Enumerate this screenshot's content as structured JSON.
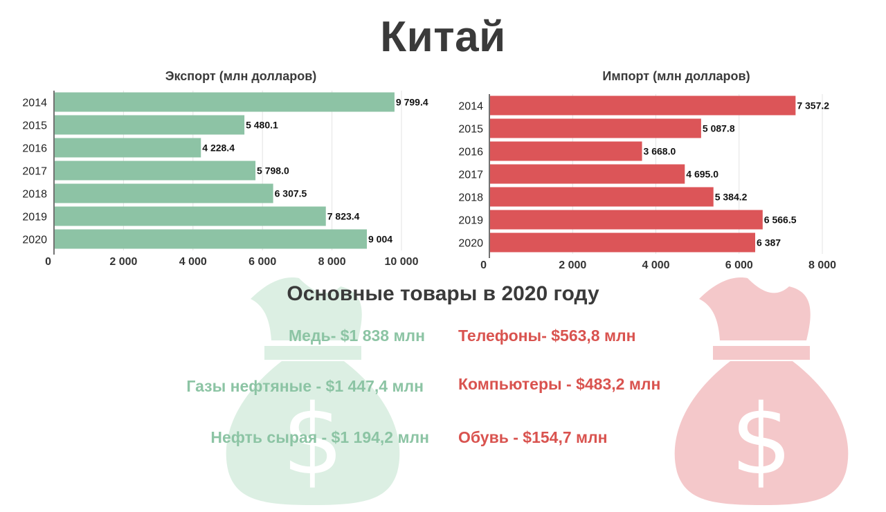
{
  "title": "Китай",
  "colors": {
    "export": "#8dc3a5",
    "import": "#dc5558",
    "bag_export": "#dcefe3",
    "bag_import": "#f4c8ca"
  },
  "icons": [
    "money-bag-icon",
    "money-bag-icon"
  ],
  "chart_data": [
    {
      "type": "bar",
      "orientation": "horizontal",
      "title": "Экспорт (млн долларов)",
      "categories": [
        "2014",
        "2015",
        "2016",
        "2017",
        "2018",
        "2019",
        "2020"
      ],
      "values": [
        9799.4,
        5480.1,
        4228.4,
        5798.0,
        6307.5,
        7823.4,
        9004
      ],
      "value_labels": [
        "9 799.4",
        "5 480.1",
        "4 228.4",
        "5 798.0",
        "6 307.5",
        "7 823.4",
        "9 004"
      ],
      "xlim": [
        0,
        10000
      ],
      "ticks": [
        0,
        2000,
        4000,
        6000,
        8000,
        10000
      ],
      "tick_labels": [
        "0",
        "2 000",
        "4 000",
        "6 000",
        "8 000",
        "10 000"
      ],
      "grid": true
    },
    {
      "type": "bar",
      "orientation": "horizontal",
      "title": "Импорт (млн долларов)",
      "categories": [
        "2014",
        "2015",
        "2016",
        "2017",
        "2018",
        "2019",
        "2020"
      ],
      "values": [
        7357.2,
        5087.8,
        3668.0,
        4695.0,
        5384.2,
        6566.5,
        6387
      ],
      "value_labels": [
        "7 357.2",
        "5 087.8",
        "3 668.0",
        "4 695.0",
        "5 384.2",
        "6 566.5",
        "6 387"
      ],
      "xlim": [
        0,
        8000
      ],
      "ticks": [
        0,
        2000,
        4000,
        6000,
        8000
      ],
      "tick_labels": [
        "0",
        "2 000",
        "4 000",
        "6 000",
        "8 000"
      ],
      "grid": true
    }
  ],
  "goods": {
    "title": "Основные товары в 2020 году",
    "export": [
      "Медь- $1 838 млн",
      "Газы нефтяные - $1 447,4 млн",
      "Нефть сырая - $1 194,2 млн"
    ],
    "import": [
      "Телефоны- $563,8 млн",
      "Компьютеры  - $483,2 млн",
      "Обувь - $154,7 млн"
    ]
  }
}
